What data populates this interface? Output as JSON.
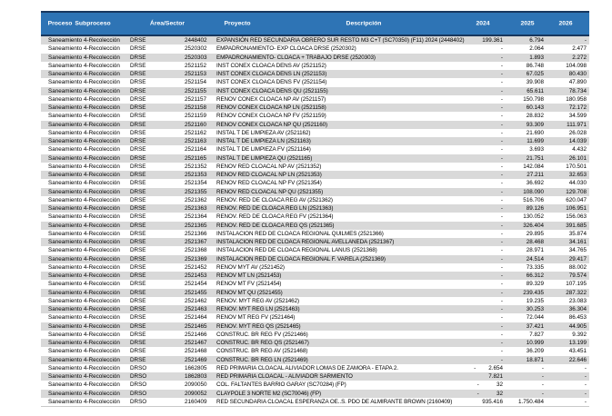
{
  "table": {
    "columns": [
      "Proceso",
      "Subproceso",
      "Área/Sector",
      "Proyecto",
      "Descripción",
      "2024",
      "2025",
      "2026"
    ],
    "rows": [
      [
        "Saneamiento",
        "4-Recolección",
        "DRSE",
        "2448402",
        "EXPANSIÓN RED SECUNDARIA OBRERO SUR RESTO M3 C+T (SC70350) (F11) 2024 (2448402)",
        "199.361",
        "6.794",
        "-"
      ],
      [
        "Saneamiento",
        "4-Recolección",
        "DRSE",
        "2520302",
        "EMPADRONAMIENTO- EXP CLOACA DRSE (2520302)",
        "-",
        "2.064",
        "2.477"
      ],
      [
        "Saneamiento",
        "4-Recolección",
        "DRSE",
        "2520303",
        "EMPADRONAMIENTO- CLOACA + TRABAJO DRSE (2520303)",
        "-",
        "1.893",
        "2.272"
      ],
      [
        "Saneamiento",
        "4-Recolección",
        "DRSE",
        "2521152",
        "INST CONEX CLOACA DENS  AV (2521152)",
        "-",
        "86.748",
        "104.098"
      ],
      [
        "Saneamiento",
        "4-Recolección",
        "DRSE",
        "2521153",
        "INST CONEX CLOACA DENS  LN (2521153)",
        "-",
        "67.025",
        "80.430"
      ],
      [
        "Saneamiento",
        "4-Recolección",
        "DRSE",
        "2521154",
        "INST CONEX CLOACA DENS  FV (2521154)",
        "-",
        "39.908",
        "47.890"
      ],
      [
        "Saneamiento",
        "4-Recolección",
        "DRSE",
        "2521155",
        "INST CONEX CLOACA DENS  QU (2521155)",
        "-",
        "65.611",
        "78.734"
      ],
      [
        "Saneamiento",
        "4-Recolección",
        "DRSE",
        "2521157",
        "RENOV CONEX CLOACA NP  AV (2521157)",
        "-",
        "150.798",
        "180.958"
      ],
      [
        "Saneamiento",
        "4-Recolección",
        "DRSE",
        "2521158",
        "RENOV CONEX CLOACA NP  LN (2521158)",
        "-",
        "60.143",
        "72.172"
      ],
      [
        "Saneamiento",
        "4-Recolección",
        "DRSE",
        "2521159",
        "RENOV CONEX CLOACA NP  FV (2521159)",
        "-",
        "28.832",
        "34.599"
      ],
      [
        "Saneamiento",
        "4-Recolección",
        "DRSE",
        "2521160",
        "RENOV CONEX CLOACA NP  QU (2521160)",
        "-",
        "93.309",
        "111.971"
      ],
      [
        "Saneamiento",
        "4-Recolección",
        "DRSE",
        "2521162",
        "INSTAL T  DE LIMPIEZA  AV (2521162)",
        "-",
        "21.690",
        "26.028"
      ],
      [
        "Saneamiento",
        "4-Recolección",
        "DRSE",
        "2521163",
        "INSTAL T  DE LIMPIEZA  LN (2521163)",
        "-",
        "11.699",
        "14.039"
      ],
      [
        "Saneamiento",
        "4-Recolección",
        "DRSE",
        "2521164",
        "INSTAL T  DE LIMPIEZA  FV (2521164)",
        "-",
        "3.693",
        "4.432"
      ],
      [
        "Saneamiento",
        "4-Recolección",
        "DRSE",
        "2521165",
        "INSTAL T  DE LIMPIEZA  QU (2521165)",
        "-",
        "21.751",
        "26.101"
      ],
      [
        "Saneamiento",
        "4-Recolección",
        "DRSE",
        "2521352",
        "RENOV RED CLOACAL NP AV (2521352)",
        "-",
        "142.084",
        "170.501"
      ],
      [
        "Saneamiento",
        "4-Recolección",
        "DRSE",
        "2521353",
        "RENOV RED CLOACAL NP LN (2521353)",
        "-",
        "27.211",
        "32.653"
      ],
      [
        "Saneamiento",
        "4-Recolección",
        "DRSE",
        "2521354",
        "RENOV RED CLOACAL NP  FV (2521354)",
        "-",
        "36.692",
        "44.030"
      ],
      [
        "Saneamiento",
        "4-Recolección",
        "DRSE",
        "2521355",
        "RENOV RED CLOACAL NP QU (2521355)",
        "-",
        "108.090",
        "129.708"
      ],
      [
        "Saneamiento",
        "4-Recolección",
        "DRSE",
        "2521362",
        "RENOV. RED DE CLOACA REG AV (2521362)",
        "-",
        "516.706",
        "620.047"
      ],
      [
        "Saneamiento",
        "4-Recolección",
        "DRSE",
        "2521363",
        "RENOV. RED DE CLOACA REG LN (2521363)",
        "-",
        "89.126",
        "106.951"
      ],
      [
        "Saneamiento",
        "4-Recolección",
        "DRSE",
        "2521364",
        "RENOV. RED DE CLOACA REG  FV (2521364)",
        "-",
        "130.052",
        "156.063"
      ],
      [
        "Saneamiento",
        "4-Recolección",
        "DRSE",
        "2521365",
        "RENOV. RED DE CLOACA REG QS (2521365)",
        "-",
        "326.404",
        "391.685"
      ],
      [
        "Saneamiento",
        "4-Recolección",
        "DRSE",
        "2521366",
        "INSTALACION RED DE CLOACA REGIONAL QUILMES (2521366)",
        "-",
        "29.895",
        "35.874"
      ],
      [
        "Saneamiento",
        "4-Recolección",
        "DRSE",
        "2521367",
        "INSTALACION RED DE CLOACA REGIONAL AVELLANEDA (2521367)",
        "-",
        "28.468",
        "34.161"
      ],
      [
        "Saneamiento",
        "4-Recolección",
        "DRSE",
        "2521368",
        "INSTALACION RED DE CLOACA REGIONAL LANUS (2521368)",
        "-",
        "28.971",
        "34.765"
      ],
      [
        "Saneamiento",
        "4-Recolección",
        "DRSE",
        "2521369",
        "INSTALACION RED DE CLOACA REGIONAL F. VARELA (2521369)",
        "-",
        "24.514",
        "29.417"
      ],
      [
        "Saneamiento",
        "4-Recolección",
        "DRSE",
        "2521452",
        "RENOV MYT AV (2521452)",
        "-",
        "73.335",
        "88.002"
      ],
      [
        "Saneamiento",
        "4-Recolección",
        "DRSE",
        "2521453",
        "RENOV MT  LN (2521453)",
        "-",
        "66.312",
        "79.574"
      ],
      [
        "Saneamiento",
        "4-Recolección",
        "DRSE",
        "2521454",
        "RENOV MT  FV (2521454)",
        "-",
        "89.329",
        "107.195"
      ],
      [
        "Saneamiento",
        "4-Recolección",
        "DRSE",
        "2521455",
        "RENOV MT  QU (2521455)",
        "-",
        "239.435",
        "287.322"
      ],
      [
        "Saneamiento",
        "4-Recolección",
        "DRSE",
        "2521462",
        "RENOV. MYT REG AV (2521462)",
        "-",
        "19.235",
        "23.083"
      ],
      [
        "Saneamiento",
        "4-Recolección",
        "DRSE",
        "2521463",
        "RENOV. MYT REG LN (2521463)",
        "-",
        "30.253",
        "36.304"
      ],
      [
        "Saneamiento",
        "4-Recolección",
        "DRSE",
        "2521464",
        "RENOV MT REG FV (2521464)",
        "-",
        "72.044",
        "86.453"
      ],
      [
        "Saneamiento",
        "4-Recolección",
        "DRSE",
        "2521465",
        "RENOV. MYT REG QS (2521465)",
        "-",
        "37.421",
        "44.905"
      ],
      [
        "Saneamiento",
        "4-Recolección",
        "DRSE",
        "2521466",
        "CONSTRUC. BR REG FV (2521466)",
        "-",
        "7.827",
        "9.392"
      ],
      [
        "Saneamiento",
        "4-Recolección",
        "DRSE",
        "2521467",
        "CONSTRUC. BR REG QS (2521467)",
        "-",
        "10.999",
        "13.199"
      ],
      [
        "Saneamiento",
        "4-Recolección",
        "DRSE",
        "2521468",
        "CONSTRUC. BR REG AV (2521468)",
        "-",
        "36.209",
        "43.451"
      ],
      [
        "Saneamiento",
        "4-Recolección",
        "DRSE",
        "2521469",
        "CONSTRUC. BR REG LN (2521469)",
        "-",
        "18.871",
        "22.646"
      ],
      [
        "Saneamiento",
        "4-Recolección",
        "DRSO",
        "1662805",
        "RED PRIMARIA CLOACAL ALIVIADOR LOMAS DE ZAMORA - ETAPA 2.",
        "-        2.654",
        "-",
        "-"
      ],
      [
        "Saneamiento",
        "4-Recolección",
        "DRSO",
        "1862803",
        "RED PRIMARIA CLOACAL - ALIVIADOR SARMIENTO",
        "7.821",
        "-",
        "-"
      ],
      [
        "Saneamiento",
        "4-Recolección",
        "DRSO",
        "2090050",
        "COL. FALTANTES BARRIO GARAY (SC70284) (FP)",
        "-           32",
        "-",
        "-"
      ],
      [
        "Saneamiento",
        "4-Recolección",
        "DRSO",
        "2090052",
        "CLAYPOLE 3 NORTE M2 (SC70046) (FP)",
        "-           32",
        "-",
        "-"
      ],
      [
        "Saneamiento",
        "4-Recolección",
        "DRSO",
        "2160409",
        "RED SECUNDARIA CLOACAL ESPERANZA OE..S. PDO DE ALMIRANTE BROWN (2160409)",
        "935.416",
        "1.750.484",
        "-"
      ]
    ]
  },
  "colors": {
    "header_bg": "#2E74B5",
    "header_text": "#FFFFFF",
    "row_stripe": "#D9D9D9",
    "header_border": "#17375E"
  }
}
